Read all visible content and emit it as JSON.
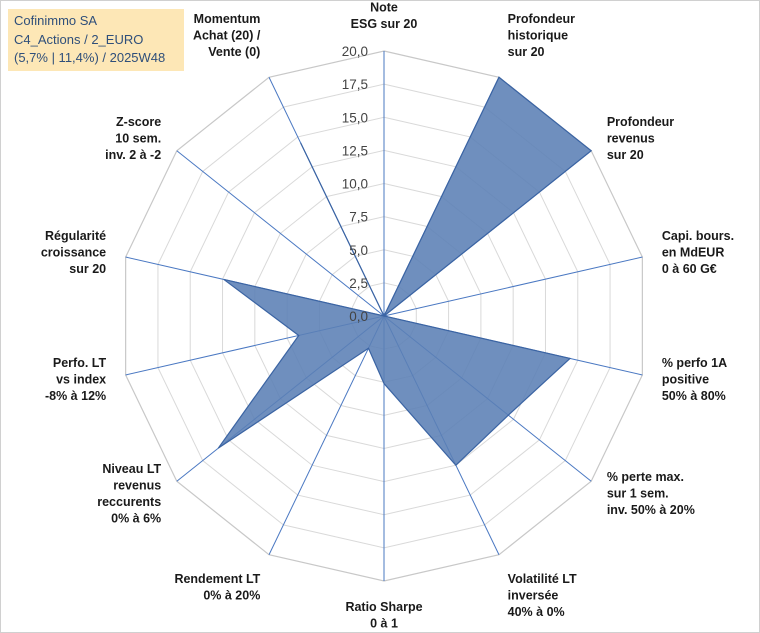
{
  "title_lines": [
    "Cofinimmo SA",
    "C4_Actions / 2_EURO",
    "(5,7% | 11,4%) / 2025W48"
  ],
  "chart_data": {
    "type": "radar",
    "r_ticks": [
      "0,0",
      "2,5",
      "5,0",
      "7,5",
      "10,0",
      "12,5",
      "15,0",
      "17,5",
      "20,0"
    ],
    "r_range": [
      0,
      20
    ],
    "grid": true,
    "fill_color": "#5b80b5",
    "line_color": "#3b64a3",
    "grid_color": "#d9d9d9",
    "spoke_color": "#4a78c2",
    "axes": [
      {
        "label": [
          "Note",
          "ESG sur 20"
        ],
        "value": 0
      },
      {
        "label": [
          "Profondeur",
          "historique",
          "sur 20"
        ],
        "value": 20
      },
      {
        "label": [
          "Profondeur",
          "revenus",
          "sur 20"
        ],
        "value": 20
      },
      {
        "label": [
          "Capi. bours.",
          "en MdEUR",
          "0 à 60 G€"
        ],
        "value": 0
      },
      {
        "label": [
          "% perfo 1A",
          "positive",
          "50% à 80%"
        ],
        "value": 14.4
      },
      {
        "label": [
          "% perte max.",
          "sur 1 sem.",
          "inv. 50% à 20%"
        ],
        "value": 12.0
      },
      {
        "label": [
          "Volatilité LT",
          "inversée",
          "40% à 0%"
        ],
        "value": 12.5
      },
      {
        "label": [
          "Ratio Sharpe",
          "0 à 1"
        ],
        "value": 5.1
      },
      {
        "label": [
          "Rendement LT",
          "0% à 20%"
        ],
        "value": 2.7
      },
      {
        "label": [
          "Niveau LT",
          "revenus",
          "reccurents",
          "0% à 6%"
        ],
        "value": 16.0
      },
      {
        "label": [
          "Perfo. LT",
          "vs index",
          "-8% à 12%"
        ],
        "value": 6.6
      },
      {
        "label": [
          "Régularité",
          "croissance",
          "sur 20"
        ],
        "value": 12.4
      },
      {
        "label": [
          "Z-score",
          "10 sem.",
          "inv. 2 à -2"
        ],
        "value": 0
      },
      {
        "label": [
          "Momentum",
          "Achat (20) /",
          "Vente (0)"
        ],
        "value": 14.5
      }
    ]
  }
}
